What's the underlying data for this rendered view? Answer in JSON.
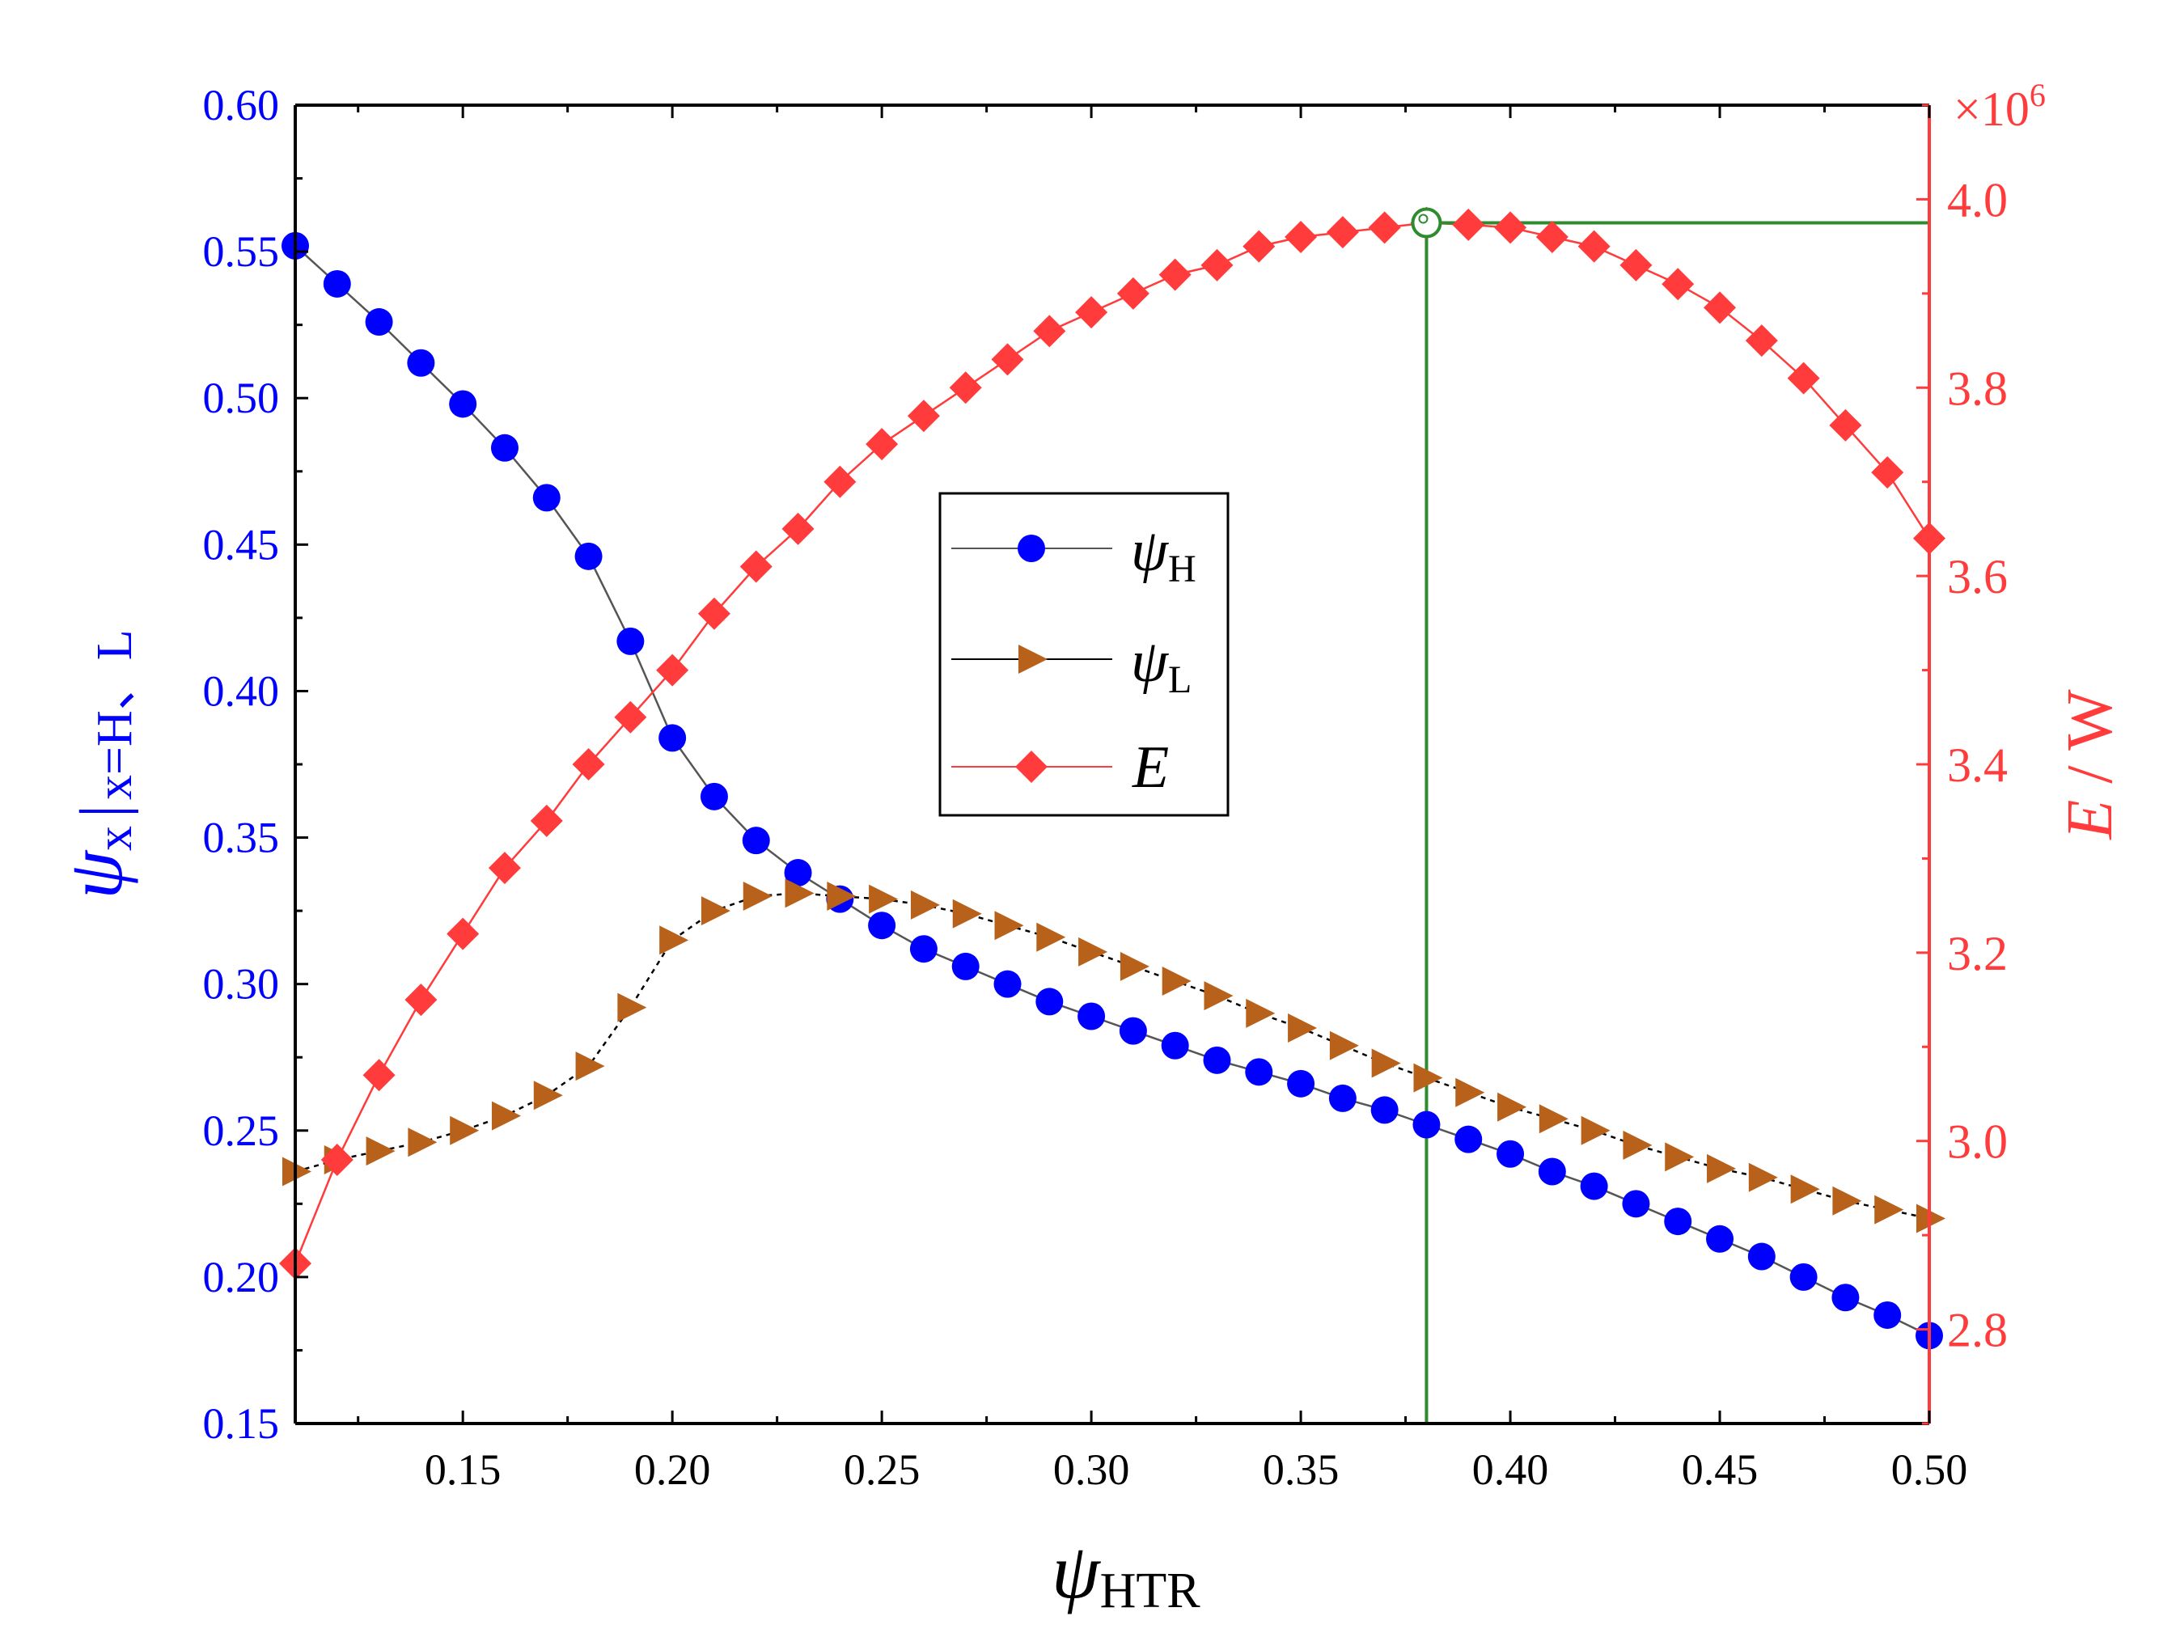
{
  "chart_data": {
    "type": "line",
    "title": "",
    "xlabel": {
      "symbol": "ψ",
      "subscript": "HTR"
    },
    "ylabel_left": {
      "symbol": "ψ",
      "subscript": "x",
      "bar": "|",
      "condition": "x=H、L"
    },
    "ylabel_right": {
      "symbol": "E",
      "unit": " / W"
    },
    "right_multiplier": {
      "base": "×10",
      "exp": "6"
    },
    "xlim": [
      0.11,
      0.5
    ],
    "ylim_left": [
      0.15,
      0.6
    ],
    "ylim_right": [
      2.7,
      4.1
    ],
    "x_ticks": [
      "0.15",
      "0.20",
      "0.25",
      "0.30",
      "0.35",
      "0.40",
      "0.45",
      "0.50"
    ],
    "y_ticks_left": [
      "0.15",
      "0.20",
      "0.25",
      "0.30",
      "0.35",
      "0.40",
      "0.45",
      "0.50",
      "0.55",
      "0.60"
    ],
    "y_ticks_right": [
      "2.8",
      "3.0",
      "3.2",
      "3.4",
      "3.6",
      "3.8",
      "4.0"
    ],
    "x": [
      0.11,
      0.12,
      0.13,
      0.14,
      0.15,
      0.16,
      0.17,
      0.18,
      0.19,
      0.2,
      0.21,
      0.22,
      0.23,
      0.24,
      0.25,
      0.26,
      0.27,
      0.28,
      0.29,
      0.3,
      0.31,
      0.32,
      0.33,
      0.34,
      0.35,
      0.36,
      0.37,
      0.38,
      0.39,
      0.4,
      0.41,
      0.42,
      0.43,
      0.44,
      0.45,
      0.46,
      0.47,
      0.48,
      0.49,
      0.5
    ],
    "series": [
      {
        "name": "ψH",
        "legend_symbol": "ψ",
        "legend_sub": "H",
        "axis": "left",
        "marker": "circle",
        "color": "#0000FF",
        "line_color": "#555555",
        "values": [
          0.552,
          0.539,
          0.526,
          0.512,
          0.498,
          0.483,
          0.466,
          0.446,
          0.417,
          0.384,
          0.364,
          0.349,
          0.338,
          0.329,
          0.32,
          0.312,
          0.306,
          0.3,
          0.294,
          0.289,
          0.284,
          0.279,
          0.274,
          0.27,
          0.266,
          0.261,
          0.257,
          0.252,
          0.247,
          0.242,
          0.236,
          0.231,
          0.225,
          0.219,
          0.213,
          0.207,
          0.2,
          0.193,
          0.187,
          0.18
        ]
      },
      {
        "name": "ψL",
        "legend_symbol": "ψ",
        "legend_sub": "L",
        "axis": "left",
        "marker": "triangle-right",
        "color": "#B8611A",
        "line_color": "#000000",
        "values": [
          0.236,
          0.24,
          0.243,
          0.246,
          0.25,
          0.255,
          0.262,
          0.272,
          0.292,
          0.315,
          0.325,
          0.33,
          0.331,
          0.33,
          0.329,
          0.327,
          0.324,
          0.32,
          0.316,
          0.311,
          0.306,
          0.301,
          0.296,
          0.29,
          0.285,
          0.279,
          0.273,
          0.268,
          0.263,
          0.258,
          0.254,
          0.25,
          0.245,
          0.241,
          0.237,
          0.234,
          0.23,
          0.226,
          0.223,
          0.22
        ]
      },
      {
        "name": "E",
        "legend_symbol": "E",
        "legend_sub": "",
        "axis": "right",
        "marker": "diamond",
        "color": "#FF3B3B",
        "line_color": "#FF3B3B",
        "values": [
          2.87,
          2.98,
          3.07,
          3.15,
          3.22,
          3.29,
          3.34,
          3.4,
          3.45,
          3.5,
          3.56,
          3.61,
          3.65,
          3.7,
          3.74,
          3.77,
          3.8,
          3.83,
          3.86,
          3.88,
          3.9,
          3.92,
          3.93,
          3.95,
          3.96,
          3.965,
          3.97,
          3.975,
          3.973,
          3.97,
          3.96,
          3.95,
          3.93,
          3.91,
          3.885,
          3.85,
          3.81,
          3.76,
          3.71,
          3.64
        ]
      }
    ],
    "annotations": [
      {
        "type": "optimum-marker",
        "x": 0.38,
        "y_right": 3.975,
        "color": "#2E8B2E"
      }
    ],
    "legend_position": "center"
  }
}
